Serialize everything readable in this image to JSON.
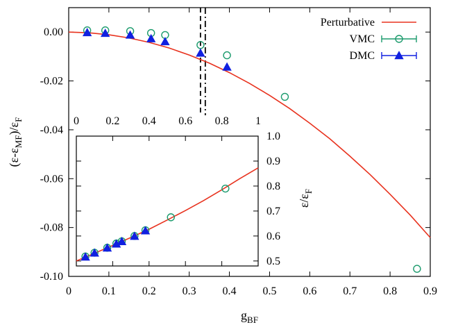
{
  "chart_data": [
    {
      "id": "main",
      "type": "line",
      "xlabel": "g",
      "xlabel_sub": "BF",
      "ylabel_parts": [
        "(ε-ε",
        "MF",
        ")/ε",
        "F"
      ],
      "xlim": [
        0,
        0.9
      ],
      "ylim": [
        -0.1,
        0.01
      ],
      "xticks": [
        0,
        0.1,
        0.2,
        0.3,
        0.4,
        0.5,
        0.6,
        0.7,
        0.8,
        0.9
      ],
      "xtick_labels": [
        "0",
        "0.1",
        "0.2",
        "0.3",
        "0.4",
        "0.5",
        "0.6",
        "0.7",
        "0.8",
        "0.9"
      ],
      "yticks": [
        0,
        -0.02,
        -0.04,
        -0.06,
        -0.08,
        -0.1
      ],
      "ytick_labels": [
        "0.00",
        "-0.02",
        "-0.04",
        "-0.06",
        "-0.08",
        "-0.10"
      ],
      "legend": {
        "placement": "top-right",
        "entries": [
          {
            "label": "Perturbative",
            "series": "Perturbative"
          },
          {
            "label": "VMC",
            "series": "VMC"
          },
          {
            "label": "DMC",
            "series": "DMC"
          }
        ]
      },
      "vertical_lines": [
        {
          "x": 0.328,
          "style": "dashed"
        },
        {
          "x": 0.34,
          "style": "dash-dot"
        }
      ],
      "series": [
        {
          "name": "Perturbative",
          "kind": "line",
          "color": "#e8321e",
          "x": [
            0,
            0.05,
            0.1,
            0.15,
            0.2,
            0.25,
            0.3,
            0.35,
            0.4,
            0.45,
            0.5,
            0.55,
            0.6,
            0.65,
            0.7,
            0.75,
            0.8,
            0.85,
            0.9
          ],
          "y": [
            0,
            -0.0003,
            -0.0011,
            -0.0024,
            -0.0042,
            -0.0065,
            -0.0094,
            -0.0127,
            -0.0166,
            -0.021,
            -0.0259,
            -0.0313,
            -0.0373,
            -0.0437,
            -0.0508,
            -0.0583,
            -0.0664,
            -0.0749,
            -0.0841
          ]
        },
        {
          "name": "VMC",
          "kind": "marker",
          "marker": "circle",
          "color": "#1a9a6c",
          "x": [
            0.046,
            0.091,
            0.153,
            0.205,
            0.24,
            0.328,
            0.394,
            0.538,
            0.867
          ],
          "y": [
            0.0007,
            0.0007,
            0.0004,
            -0.0004,
            -0.0012,
            -0.0053,
            -0.0095,
            -0.0265,
            -0.0969
          ]
        },
        {
          "name": "DMC",
          "kind": "marker",
          "marker": "triangle",
          "color": "#1020e0",
          "x": [
            0.046,
            0.091,
            0.153,
            0.205,
            0.24,
            0.328,
            0.394
          ],
          "y": [
            -0.0002,
            -0.0005,
            -0.0012,
            -0.0027,
            -0.0039,
            -0.0086,
            -0.0143
          ]
        }
      ]
    },
    {
      "id": "inset",
      "type": "line",
      "xlim": [
        0,
        1
      ],
      "ylim": [
        0.48,
        1.0
      ],
      "xticks": [
        0,
        0.2,
        0.4,
        0.6,
        0.8,
        1.0
      ],
      "xtick_labels": [
        "0",
        "0.2",
        "0.4",
        "0.6",
        "0.8",
        "1"
      ],
      "yticks": [
        0.5,
        0.6,
        0.7,
        0.8,
        0.9,
        1.0
      ],
      "ytick_labels": [
        "0.5",
        "0.6",
        "0.7",
        "0.8",
        "0.9",
        "1.0"
      ],
      "ylabel_parts": [
        "ε/ε",
        "F"
      ],
      "series": [
        {
          "name": "Perturbative",
          "kind": "line",
          "color": "#e8321e",
          "x": [
            0,
            0.1,
            0.2,
            0.3,
            0.4,
            0.5,
            0.6,
            0.7,
            0.8,
            0.9,
            1.0
          ],
          "y": [
            0.5,
            0.531,
            0.562,
            0.594,
            0.627,
            0.664,
            0.702,
            0.742,
            0.785,
            0.83,
            0.873
          ]
        },
        {
          "name": "VMC",
          "kind": "marker",
          "marker": "circle",
          "color": "#1a9a6c",
          "x": [
            0.05,
            0.1,
            0.17,
            0.22,
            0.25,
            0.32,
            0.38,
            0.52,
            0.82
          ],
          "y": [
            0.518,
            0.533,
            0.553,
            0.57,
            0.579,
            0.6,
            0.623,
            0.675,
            0.79
          ]
        },
        {
          "name": "DMC",
          "kind": "marker",
          "marker": "triangle",
          "color": "#1020e0",
          "x": [
            0.05,
            0.1,
            0.17,
            0.22,
            0.25,
            0.32,
            0.38
          ],
          "y": [
            0.516,
            0.532,
            0.552,
            0.568,
            0.578,
            0.599,
            0.621
          ]
        }
      ]
    }
  ]
}
